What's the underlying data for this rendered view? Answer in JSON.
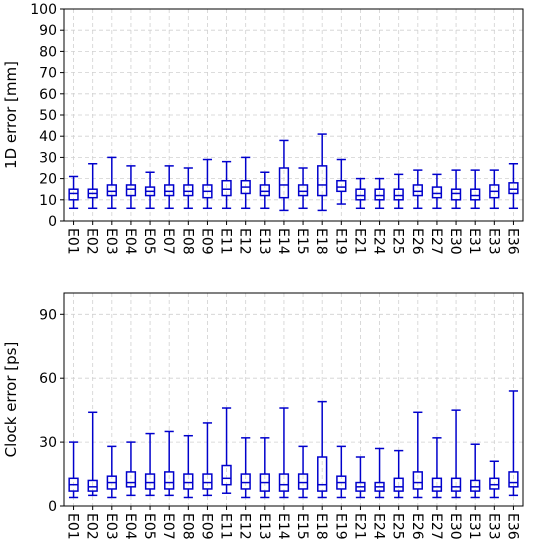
{
  "chart_data": [
    {
      "type": "box",
      "title": "",
      "xlabel": "",
      "ylabel": "1D error [mm]",
      "ylim": [
        0,
        100
      ],
      "yticks": [
        0,
        10,
        20,
        30,
        40,
        50,
        60,
        70,
        80,
        90,
        100
      ],
      "grid": true,
      "color": "#0000cc",
      "categories": [
        "E01",
        "E02",
        "E03",
        "E04",
        "E05",
        "E07",
        "E08",
        "E09",
        "E11",
        "E12",
        "E13",
        "E14",
        "E15",
        "E18",
        "E19",
        "E21",
        "E24",
        "E25",
        "E26",
        "E27",
        "E30",
        "E31",
        "E33",
        "E36"
      ],
      "boxes": [
        {
          "min": 6,
          "q1": 10,
          "median": 13,
          "q3": 15,
          "max": 21
        },
        {
          "min": 6,
          "q1": 11,
          "median": 13,
          "q3": 15,
          "max": 27
        },
        {
          "min": 6,
          "q1": 12,
          "median": 14,
          "q3": 17,
          "max": 30
        },
        {
          "min": 6,
          "q1": 12,
          "median": 15,
          "q3": 17,
          "max": 26
        },
        {
          "min": 6,
          "q1": 12,
          "median": 14,
          "q3": 16,
          "max": 23
        },
        {
          "min": 6,
          "q1": 12,
          "median": 14,
          "q3": 17,
          "max": 26
        },
        {
          "min": 6,
          "q1": 12,
          "median": 14,
          "q3": 17,
          "max": 25
        },
        {
          "min": 6,
          "q1": 11,
          "median": 14,
          "q3": 17,
          "max": 29
        },
        {
          "min": 6,
          "q1": 12,
          "median": 15,
          "q3": 19,
          "max": 28
        },
        {
          "min": 6,
          "q1": 13,
          "median": 16,
          "q3": 19,
          "max": 30
        },
        {
          "min": 6,
          "q1": 12,
          "median": 14,
          "q3": 17,
          "max": 23
        },
        {
          "min": 5,
          "q1": 11,
          "median": 17,
          "q3": 25,
          "max": 38
        },
        {
          "min": 6,
          "q1": 12,
          "median": 14,
          "q3": 17,
          "max": 25
        },
        {
          "min": 5,
          "q1": 12,
          "median": 17,
          "q3": 26,
          "max": 41
        },
        {
          "min": 8,
          "q1": 14,
          "median": 16,
          "q3": 19,
          "max": 29
        },
        {
          "min": 6,
          "q1": 10,
          "median": 12,
          "q3": 15,
          "max": 20
        },
        {
          "min": 6,
          "q1": 10,
          "median": 12,
          "q3": 15,
          "max": 20
        },
        {
          "min": 6,
          "q1": 10,
          "median": 12,
          "q3": 15,
          "max": 22
        },
        {
          "min": 6,
          "q1": 12,
          "median": 14,
          "q3": 17,
          "max": 24
        },
        {
          "min": 6,
          "q1": 11,
          "median": 13,
          "q3": 16,
          "max": 22
        },
        {
          "min": 6,
          "q1": 10,
          "median": 13,
          "q3": 15,
          "max": 24
        },
        {
          "min": 6,
          "q1": 10,
          "median": 12,
          "q3": 15,
          "max": 24
        },
        {
          "min": 6,
          "q1": 11,
          "median": 14,
          "q3": 17,
          "max": 24
        },
        {
          "min": 6,
          "q1": 13,
          "median": 15,
          "q3": 18,
          "max": 27
        }
      ]
    },
    {
      "type": "box",
      "title": "",
      "xlabel": "",
      "ylabel": "Clock error [ps]",
      "ylim": [
        0,
        100
      ],
      "yticks": [
        0,
        30,
        60,
        90
      ],
      "grid": true,
      "color": "#0000cc",
      "categories": [
        "E01",
        "E02",
        "E03",
        "E04",
        "E05",
        "E07",
        "E08",
        "E09",
        "E11",
        "E12",
        "E13",
        "E14",
        "E15",
        "E18",
        "E19",
        "E21",
        "E24",
        "E25",
        "E26",
        "E27",
        "E30",
        "E31",
        "E33",
        "E36"
      ],
      "boxes": [
        {
          "min": 4,
          "q1": 7,
          "median": 10,
          "q3": 13,
          "max": 30
        },
        {
          "min": 5,
          "q1": 7,
          "median": 9,
          "q3": 12,
          "max": 44
        },
        {
          "min": 4,
          "q1": 8,
          "median": 11,
          "q3": 14,
          "max": 28
        },
        {
          "min": 5,
          "q1": 9,
          "median": 11,
          "q3": 16,
          "max": 30
        },
        {
          "min": 5,
          "q1": 8,
          "median": 11,
          "q3": 15,
          "max": 34
        },
        {
          "min": 5,
          "q1": 8,
          "median": 11,
          "q3": 16,
          "max": 35
        },
        {
          "min": 4,
          "q1": 8,
          "median": 11,
          "q3": 15,
          "max": 33
        },
        {
          "min": 5,
          "q1": 8,
          "median": 11,
          "q3": 15,
          "max": 39
        },
        {
          "min": 6,
          "q1": 10,
          "median": 13,
          "q3": 19,
          "max": 46
        },
        {
          "min": 4,
          "q1": 8,
          "median": 11,
          "q3": 15,
          "max": 32
        },
        {
          "min": 4,
          "q1": 7,
          "median": 11,
          "q3": 15,
          "max": 32
        },
        {
          "min": 4,
          "q1": 7,
          "median": 10,
          "q3": 15,
          "max": 46
        },
        {
          "min": 4,
          "q1": 8,
          "median": 11,
          "q3": 15,
          "max": 28
        },
        {
          "min": 4,
          "q1": 7,
          "median": 10,
          "q3": 23,
          "max": 49
        },
        {
          "min": 4,
          "q1": 8,
          "median": 11,
          "q3": 14,
          "max": 28
        },
        {
          "min": 4,
          "q1": 7,
          "median": 9,
          "q3": 11,
          "max": 23
        },
        {
          "min": 4,
          "q1": 7,
          "median": 9,
          "q3": 11,
          "max": 27
        },
        {
          "min": 4,
          "q1": 7,
          "median": 9,
          "q3": 13,
          "max": 26
        },
        {
          "min": 4,
          "q1": 8,
          "median": 11,
          "q3": 16,
          "max": 44
        },
        {
          "min": 4,
          "q1": 7,
          "median": 9,
          "q3": 13,
          "max": 32
        },
        {
          "min": 4,
          "q1": 7,
          "median": 9,
          "q3": 13,
          "max": 45
        },
        {
          "min": 4,
          "q1": 7,
          "median": 9,
          "q3": 12,
          "max": 29
        },
        {
          "min": 4,
          "q1": 8,
          "median": 10,
          "q3": 13,
          "max": 21
        },
        {
          "min": 5,
          "q1": 9,
          "median": 11,
          "q3": 16,
          "max": 54
        }
      ]
    }
  ]
}
